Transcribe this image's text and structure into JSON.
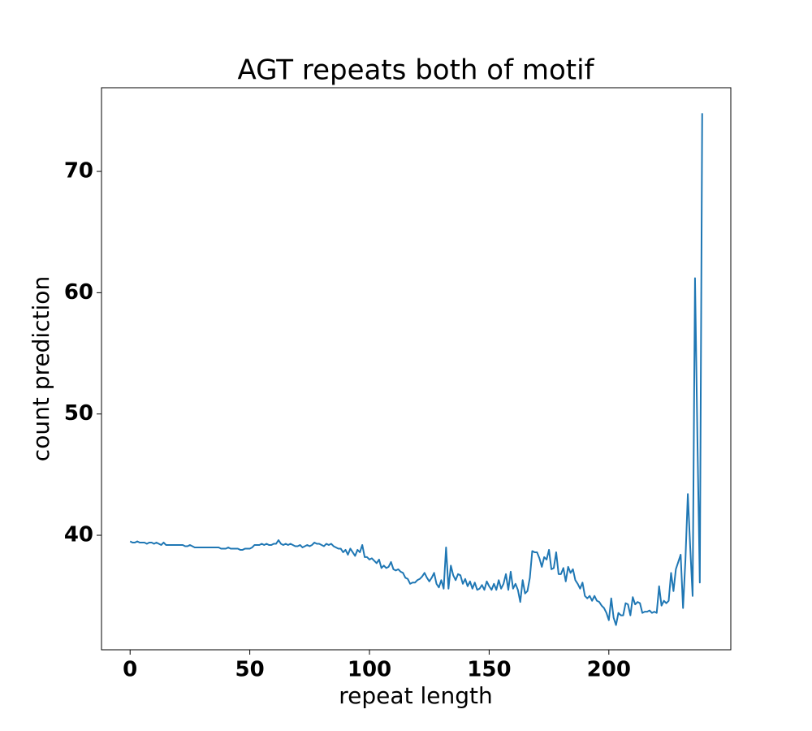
{
  "chart_data": {
    "type": "line",
    "title": "AGT repeats both of motif",
    "xlabel": "repeat length",
    "ylabel": "count prediction",
    "x": [
      0,
      1,
      2,
      3,
      4,
      5,
      6,
      7,
      8,
      9,
      10,
      11,
      12,
      13,
      14,
      15,
      16,
      17,
      18,
      19,
      20,
      21,
      22,
      23,
      24,
      25,
      26,
      27,
      28,
      29,
      30,
      31,
      32,
      33,
      34,
      35,
      36,
      37,
      38,
      39,
      40,
      41,
      42,
      43,
      44,
      45,
      46,
      47,
      48,
      49,
      50,
      51,
      52,
      53,
      54,
      55,
      56,
      57,
      58,
      59,
      60,
      61,
      62,
      63,
      64,
      65,
      66,
      67,
      68,
      69,
      70,
      71,
      72,
      73,
      74,
      75,
      76,
      77,
      78,
      79,
      80,
      81,
      82,
      83,
      84,
      85,
      86,
      87,
      88,
      89,
      90,
      91,
      92,
      93,
      94,
      95,
      96,
      97,
      98,
      99,
      100,
      101,
      102,
      103,
      104,
      105,
      106,
      107,
      108,
      109,
      110,
      111,
      112,
      113,
      114,
      115,
      116,
      117,
      118,
      119,
      120,
      121,
      122,
      123,
      124,
      125,
      126,
      127,
      128,
      129,
      130,
      131,
      132,
      133,
      134,
      135,
      136,
      137,
      138,
      139,
      140,
      141,
      142,
      143,
      144,
      145,
      146,
      147,
      148,
      149,
      150,
      151,
      152,
      153,
      154,
      155,
      156,
      157,
      158,
      159,
      160,
      161,
      162,
      163,
      164,
      165,
      166,
      167,
      168,
      169,
      170,
      171,
      172,
      173,
      174,
      175,
      176,
      177,
      178,
      179,
      180,
      181,
      182,
      183,
      184,
      185,
      186,
      187,
      188,
      189,
      190,
      191,
      192,
      193,
      194,
      195,
      196,
      197,
      198,
      199,
      200,
      201,
      202,
      203,
      204,
      205,
      206,
      207,
      208,
      209,
      210,
      211,
      212,
      213,
      214,
      215,
      216,
      217,
      218,
      219,
      220,
      221,
      222,
      223,
      224,
      225,
      226,
      227,
      228,
      229,
      230,
      231,
      232,
      233,
      234,
      235,
      236,
      237,
      238,
      239
    ],
    "series": [
      {
        "color": "#1f77b4",
        "values": [
          39.5,
          39.4,
          39.4,
          39.5,
          39.4,
          39.4,
          39.4,
          39.3,
          39.4,
          39.4,
          39.3,
          39.4,
          39.3,
          39.2,
          39.4,
          39.2,
          39.2,
          39.2,
          39.2,
          39.2,
          39.2,
          39.2,
          39.2,
          39.1,
          39.1,
          39.2,
          39.1,
          39.0,
          39.0,
          39.0,
          39.0,
          39.0,
          39.0,
          39.0,
          39.0,
          39.0,
          39.0,
          39.0,
          38.9,
          38.9,
          38.9,
          39.0,
          38.9,
          38.9,
          38.9,
          38.9,
          38.8,
          38.8,
          38.9,
          38.9,
          38.9,
          39.0,
          39.2,
          39.2,
          39.2,
          39.3,
          39.2,
          39.3,
          39.2,
          39.2,
          39.3,
          39.3,
          39.6,
          39.3,
          39.2,
          39.3,
          39.2,
          39.3,
          39.2,
          39.1,
          39.1,
          39.2,
          39.0,
          39.1,
          39.2,
          39.1,
          39.2,
          39.4,
          39.3,
          39.3,
          39.2,
          39.1,
          39.3,
          39.2,
          39.3,
          39.1,
          39.0,
          38.9,
          38.9,
          38.6,
          38.8,
          38.4,
          38.9,
          38.6,
          38.3,
          38.8,
          38.6,
          39.2,
          38.2,
          38.2,
          38.0,
          38.1,
          37.9,
          37.7,
          38.0,
          37.3,
          37.5,
          37.3,
          37.4,
          37.8,
          37.2,
          37.1,
          37.2,
          37.0,
          36.9,
          36.5,
          36.4,
          36.0,
          36.1,
          36.1,
          36.3,
          36.4,
          36.6,
          36.9,
          36.5,
          36.2,
          36.5,
          36.9,
          36.0,
          35.7,
          36.3,
          35.6,
          39.0,
          35.6,
          37.5,
          36.7,
          36.3,
          36.8,
          36.7,
          36.0,
          36.4,
          35.8,
          36.2,
          35.6,
          36.1,
          35.5,
          35.6,
          35.9,
          35.5,
          36.2,
          35.8,
          35.5,
          36.0,
          35.5,
          36.3,
          35.6,
          36.0,
          36.8,
          35.5,
          37.0,
          35.6,
          36.0,
          35.5,
          34.5,
          36.3,
          35.2,
          35.4,
          36.5,
          38.7,
          38.6,
          38.6,
          38.1,
          37.4,
          38.2,
          38.0,
          38.8,
          37.2,
          37.3,
          38.6,
          36.8,
          36.8,
          37.3,
          36.2,
          37.4,
          36.9,
          37.2,
          36.3,
          36.0,
          35.6,
          36.1,
          35.0,
          34.8,
          35.0,
          34.6,
          35.0,
          34.6,
          34.5,
          34.2,
          34.0,
          33.6,
          33.0,
          34.8,
          33.2,
          32.6,
          33.6,
          33.4,
          33.4,
          34.4,
          34.3,
          33.4,
          34.9,
          34.3,
          34.5,
          34.4,
          33.6,
          33.7,
          33.7,
          33.8,
          33.6,
          33.7,
          33.6,
          35.8,
          34.2,
          34.6,
          34.4,
          34.6,
          36.9,
          35.4,
          37.2,
          37.8,
          38.4,
          34.0,
          38.0,
          43.4,
          39.0,
          35.0,
          61.2,
          48.0,
          36.1,
          74.8
        ]
      }
    ],
    "xlim": [
      -11.95,
      250.95
    ],
    "ylim": [
      30.56,
      76.9
    ],
    "xticks": [
      0,
      50,
      100,
      150,
      200
    ],
    "yticks": [
      40,
      50,
      60,
      70
    ]
  }
}
